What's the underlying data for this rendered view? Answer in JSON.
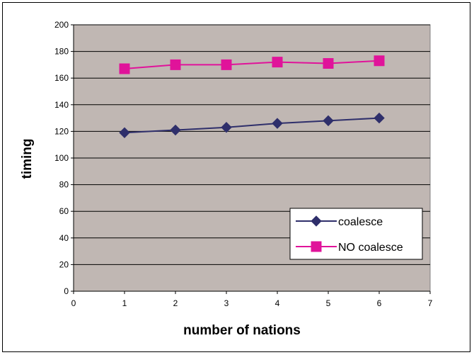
{
  "chart_data": {
    "type": "line",
    "title": "",
    "xlabel": "number of nations",
    "ylabel": "timing",
    "xlim": [
      0,
      7
    ],
    "ylim": [
      0,
      200
    ],
    "xticks": [
      0,
      1,
      2,
      3,
      4,
      5,
      6,
      7
    ],
    "yticks": [
      0,
      20,
      40,
      60,
      80,
      100,
      120,
      140,
      160,
      180,
      200
    ],
    "grid": "horizontal",
    "plot_background": "#c0b7b3",
    "legend_position": "lower-right",
    "x": [
      1,
      2,
      3,
      4,
      5,
      6
    ],
    "series": [
      {
        "name": "coalesce",
        "values": [
          119,
          121,
          123,
          126,
          128,
          130
        ],
        "color": "#2f2f6b",
        "marker": "diamond"
      },
      {
        "name": "NO coalesce",
        "values": [
          167,
          170,
          170,
          172,
          171,
          173
        ],
        "color": "#e0139a",
        "marker": "square"
      }
    ]
  }
}
